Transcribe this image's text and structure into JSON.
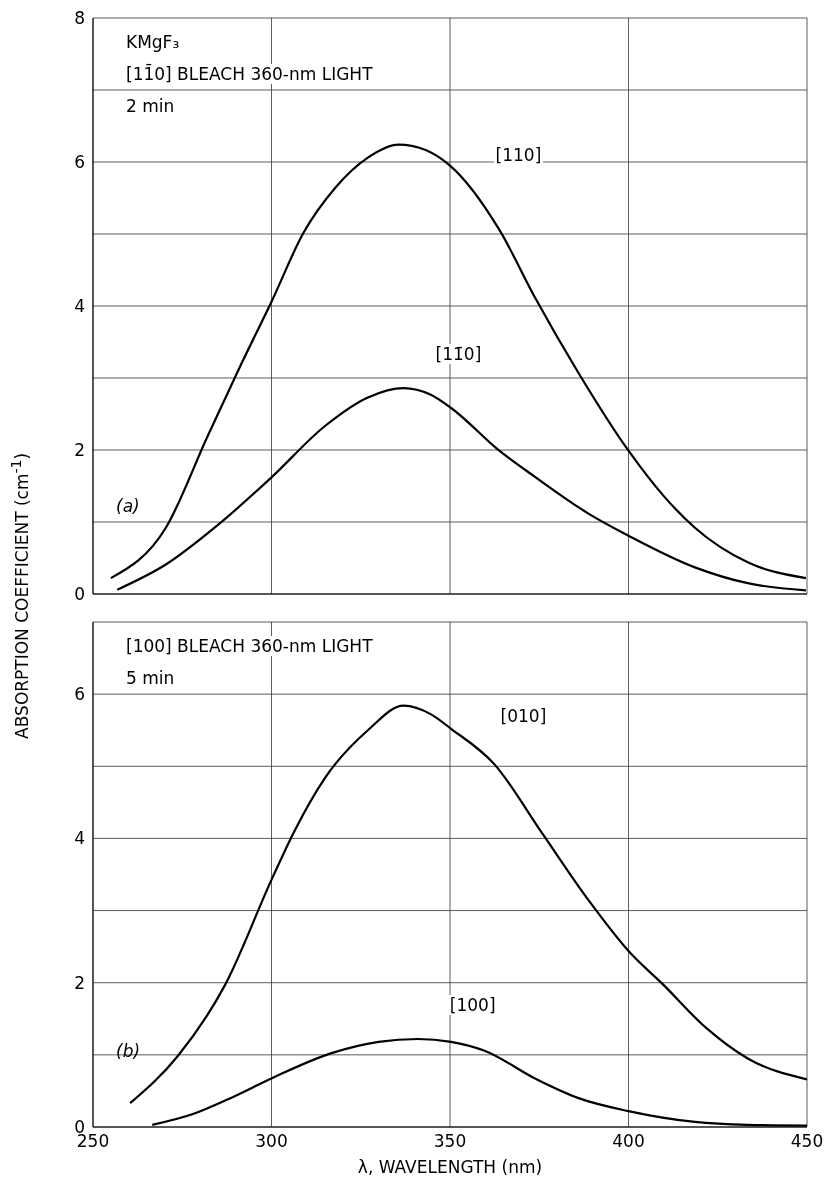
{
  "chart_data": [
    {
      "type": "line",
      "ylabel": "ABSORPTION COEFFICIENT (cm$^{-1}$)",
      "annotations": [
        "KMgF₃",
        "[11̄0] BLEACH 360-nm LIGHT",
        "2 min",
        "(a)"
      ],
      "series": [
        {
          "name": "[110]",
          "color": "#000000",
          "x": [
            255,
            270.4,
            282,
            291,
            300,
            309,
            318,
            327,
            335.6,
            343,
            350,
            363.8,
            374,
            386,
            400,
            409.7,
            418.6,
            433.4,
            449.7
          ],
          "values": [
            0.22,
            0.92,
            2.18,
            3.14,
            4.06,
            5.02,
            5.65,
            6.06,
            6.24,
            6.17,
            5.95,
            5.06,
            4.1,
            3.07,
            1.99,
            1.37,
            0.92,
            0.44,
            0.22
          ]
        },
        {
          "name": "[11̄0]",
          "color": "#000000",
          "x": [
            256.8,
            270.4,
            285,
            300,
            314.9,
            327,
            337,
            344.5,
            350.4,
            363.8,
            374,
            389,
            400,
            418.6,
            433.4,
            449.7
          ],
          "values": [
            0.06,
            0.41,
            0.96,
            1.62,
            2.33,
            2.73,
            2.86,
            2.77,
            2.58,
            1.99,
            1.62,
            1.11,
            0.81,
            0.37,
            0.15,
            0.05
          ]
        }
      ],
      "xlim": [
        250,
        450
      ],
      "xticks": [
        250,
        300,
        350,
        400,
        450
      ],
      "ylim": [
        0,
        8
      ],
      "yticks": [
        0,
        {
          "value": 1,
          "label": null
        },
        2,
        {
          "value": 3,
          "label": null
        },
        4,
        {
          "value": 5,
          "label": null
        },
        6,
        {
          "value": 7,
          "label": null
        },
        8
      ],
      "tick_labels": "y",
      "grid": true,
      "marker": "none",
      "line_style": "solid"
    },
    {
      "type": "line",
      "xlabel": "λ, WAVELENGTH (nm)",
      "annotations": [
        "[100] BLEACH 360-nm LIGHT",
        "5 min",
        "(b)"
      ],
      "series": [
        {
          "name": "[010]",
          "color": "#000000",
          "x": [
            260.4,
            273.7,
            287,
            300.3,
            306.2,
            315,
            327,
            337,
            344.7,
            350.3,
            362.4,
            375.7,
            389,
            400,
            409.8,
            421.6,
            433.4,
            450
          ],
          "values": [
            0.33,
            0.98,
            1.97,
            3.46,
            4.08,
            4.84,
            5.5,
            5.84,
            5.72,
            5.52,
            5.03,
            4.08,
            3.13,
            2.44,
            1.97,
            1.38,
            0.95,
            0.66
          ]
        },
        {
          "name": "[100]",
          "color": "#000000",
          "x": [
            266.6,
            278,
            288.5,
            300.7,
            316.6,
            330,
            341,
            350.3,
            359.5,
            374.3,
            386,
            400,
            418.6,
            433.4,
            450
          ],
          "values": [
            0.03,
            0.18,
            0.4,
            0.69,
            1.02,
            1.18,
            1.22,
            1.18,
            1.06,
            0.66,
            0.4,
            0.22,
            0.07,
            0.03,
            0.02
          ]
        }
      ],
      "xlim": [
        250,
        450
      ],
      "xticks": [
        250,
        300,
        350,
        400,
        450
      ],
      "ylim": [
        0,
        7
      ],
      "yticks": [
        0,
        {
          "value": 1,
          "label": null
        },
        2,
        {
          "value": 3,
          "label": null
        },
        4,
        {
          "value": 5,
          "label": null
        },
        6,
        {
          "value": 7,
          "label": null
        }
      ],
      "grid": true,
      "marker": "none",
      "line_style": "solid"
    }
  ]
}
